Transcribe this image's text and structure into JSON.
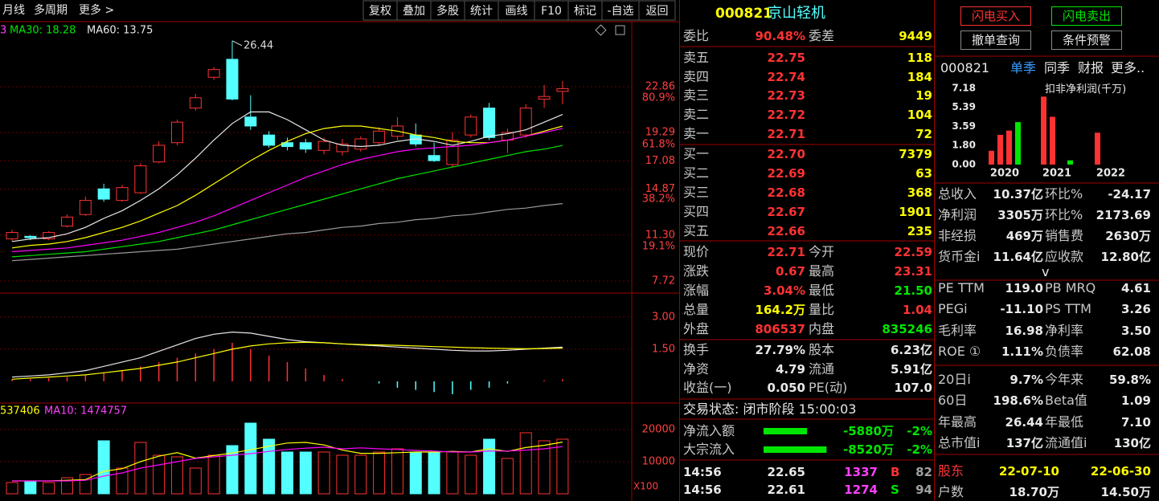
{
  "toolbar": {
    "left": [
      "月线",
      "多周期",
      "更多 >"
    ],
    "right": [
      "复权",
      "叠加",
      "多股",
      "统计",
      "画线",
      "F10",
      "标记",
      "-自选",
      "返回"
    ]
  },
  "kline": {
    "legend": [
      "3",
      "MA30: 18.28",
      "MA60: 13.75"
    ],
    "ylim": [
      6.78,
      27.87
    ],
    "yticks": [
      22.86,
      19.29,
      17.08,
      14.87,
      {
        "value": 11.3,
        "label": "11.30"
      },
      7.72
    ],
    "ratio_labels": [
      "80.9%",
      "61.8%",
      "38.2%",
      "19.1%"
    ],
    "ratio_prices": [
      21.98,
      18.35,
      14.1,
      10.41
    ],
    "open": [
      11.0,
      11.2,
      11.0,
      12.0,
      12.9,
      14.9,
      14.0,
      14.6,
      17.0,
      18.5,
      21.2,
      23.6,
      25.0,
      20.5,
      19.1,
      18.5,
      18.5,
      17.9,
      17.8,
      18.0,
      18.5,
      19.0,
      19.1,
      17.5,
      16.8,
      19.1,
      21.2,
      18.7,
      19.1,
      21.9,
      22.5
    ],
    "close": [
      11.5,
      11.1,
      11.5,
      12.7,
      14.0,
      14.1,
      15.0,
      16.7,
      18.3,
      20.1,
      22.0,
      24.2,
      21.9,
      19.8,
      18.3,
      18.2,
      18.0,
      18.6,
      18.4,
      18.8,
      19.4,
      19.8,
      18.4,
      17.1,
      18.7,
      20.5,
      18.9,
      19.3,
      21.2,
      22.1,
      22.71
    ],
    "high": [
      11.7,
      11.3,
      11.6,
      12.9,
      14.3,
      15.3,
      15.2,
      16.9,
      18.6,
      20.3,
      22.3,
      24.4,
      26.44,
      22.2,
      19.4,
      18.9,
      18.8,
      18.9,
      18.8,
      19.0,
      19.7,
      20.5,
      20.0,
      18.5,
      19.3,
      20.7,
      21.6,
      19.6,
      21.5,
      23.0,
      23.31
    ],
    "low": [
      10.8,
      10.9,
      10.9,
      11.9,
      12.8,
      13.9,
      13.9,
      14.5,
      16.9,
      18.3,
      21.0,
      23.4,
      21.8,
      19.5,
      18.1,
      17.9,
      17.7,
      17.6,
      17.5,
      17.8,
      18.3,
      18.7,
      18.2,
      17.0,
      16.6,
      18.9,
      18.7,
      17.7,
      18.9,
      21.2,
      21.5
    ],
    "ma": [
      {
        "color": "#e8e8e8",
        "values": [
          10.8,
          11.0,
          11.1,
          11.4,
          11.9,
          12.6,
          13.2,
          14.0,
          14.9,
          16.0,
          17.3,
          18.7,
          20.0,
          20.9,
          20.9,
          20.3,
          19.5,
          18.7,
          18.3,
          18.2,
          18.3,
          18.6,
          18.8,
          18.6,
          18.3,
          18.6,
          19.0,
          19.2,
          19.5,
          20.1,
          20.7
        ]
      },
      {
        "color": "#ffff00",
        "values": [
          10.3,
          10.5,
          10.6,
          10.8,
          11.1,
          11.5,
          11.9,
          12.4,
          13.0,
          13.6,
          14.4,
          15.3,
          16.2,
          17.1,
          17.9,
          18.6,
          19.2,
          19.6,
          19.8,
          19.8,
          19.6,
          19.4,
          19.1,
          18.9,
          18.6,
          18.5,
          18.5,
          18.7,
          19.0,
          19.4,
          19.8
        ]
      },
      {
        "color": "#ff00ff",
        "values": [
          10.0,
          10.1,
          10.2,
          10.3,
          10.5,
          10.7,
          10.9,
          11.2,
          11.5,
          11.9,
          12.3,
          12.8,
          13.4,
          14.0,
          14.6,
          15.2,
          15.8,
          16.3,
          16.8,
          17.2,
          17.5,
          17.8,
          18.0,
          18.1,
          18.2,
          18.3,
          18.5,
          18.7,
          19.0,
          19.3,
          19.6
        ]
      },
      {
        "color": "#00e600",
        "values": [
          9.6,
          9.7,
          9.8,
          9.9,
          10.0,
          10.2,
          10.4,
          10.6,
          10.8,
          11.1,
          11.4,
          11.7,
          12.1,
          12.5,
          12.9,
          13.3,
          13.7,
          14.1,
          14.5,
          14.9,
          15.3,
          15.7,
          16.0,
          16.3,
          16.6,
          16.9,
          17.2,
          17.5,
          17.8,
          18.0,
          18.28
        ]
      },
      {
        "color": "#9a9a9a",
        "values": [
          9.3,
          9.4,
          9.5,
          9.6,
          9.7,
          9.8,
          9.9,
          10.0,
          10.1,
          10.2,
          10.4,
          10.6,
          10.8,
          11.0,
          11.2,
          11.4,
          11.5,
          11.7,
          11.9,
          12.0,
          12.2,
          12.3,
          12.5,
          12.6,
          12.8,
          12.9,
          13.1,
          13.3,
          13.4,
          13.6,
          13.75
        ]
      }
    ]
  },
  "macd": {
    "ylim": [
      -0.94,
      4.01
    ],
    "yticks": [
      {
        "value": 3,
        "label": "3.00"
      },
      {
        "value": 1.5,
        "label": "1.50"
      }
    ],
    "bars": [
      0.1,
      0.1,
      0.15,
      0.2,
      0.3,
      0.4,
      0.5,
      0.7,
      0.9,
      1.1,
      1.3,
      1.5,
      1.8,
      1.5,
      1.2,
      0.9,
      0.6,
      0.3,
      0.1,
      0,
      -0.1,
      -0.3,
      -0.4,
      -0.5,
      -0.6,
      -0.4,
      -0.3,
      -0.1,
      0,
      0.05,
      0.1
    ],
    "dif": [
      0.2,
      0.25,
      0.3,
      0.4,
      0.5,
      0.7,
      0.9,
      1.1,
      1.4,
      1.7,
      2.0,
      2.2,
      2.3,
      2.25,
      2.1,
      1.95,
      1.85,
      1.8,
      1.75,
      1.7,
      1.65,
      1.6,
      1.55,
      1.5,
      1.45,
      1.42,
      1.42,
      1.45,
      1.5,
      1.55,
      1.6
    ],
    "dea": [
      0.1,
      0.15,
      0.2,
      0.25,
      0.3,
      0.4,
      0.5,
      0.6,
      0.75,
      0.9,
      1.1,
      1.3,
      1.5,
      1.65,
      1.75,
      1.8,
      1.82,
      1.8,
      1.75,
      1.72,
      1.7,
      1.68,
      1.65,
      1.62,
      1.6,
      1.57,
      1.55,
      1.53,
      1.52,
      1.53,
      1.55
    ]
  },
  "volume": {
    "legend": [
      "537406",
      "MA10: 1474757"
    ],
    "ylim": [
      0,
      27500
    ],
    "yticks": [
      20000,
      10000
    ],
    "unit": "X100",
    "values": [
      3500,
      4000,
      3500,
      5000,
      6000,
      16500,
      8000,
      16000,
      12000,
      11500,
      8000,
      12000,
      15000,
      22000,
      17000,
      13000,
      13000,
      13000,
      12000,
      12000,
      13000,
      14000,
      13000,
      13000,
      13000,
      12000,
      17000,
      11000,
      19000,
      16500,
      17000
    ],
    "ma5": [
      4000,
      4000,
      4000,
      4200,
      4400,
      7000,
      7800,
      10000,
      11700,
      12800,
      11100,
      11900,
      12700,
      13700,
      14800,
      15800,
      16000,
      15200,
      13600,
      12600,
      12600,
      12800,
      13000,
      13000,
      13200,
      13000,
      14000,
      13200,
      14400,
      15100,
      16100
    ],
    "ma10": [
      4000,
      4000,
      4000,
      4000,
      4200,
      5500,
      6500,
      8000,
      9000,
      10000,
      11000,
      11500,
      12000,
      12500,
      13200,
      13800,
      14200,
      14500,
      14000,
      14300,
      14000,
      13800,
      13500,
      13300,
      13000,
      13000,
      13300,
      13300,
      13600,
      14000,
      14700
    ]
  },
  "quote": {
    "code": "000821",
    "name": "京山轻机",
    "ratio_row": [
      "委比",
      "90.48%",
      "委差",
      "9449"
    ],
    "asks": [
      [
        "卖五",
        "22.75",
        "118"
      ],
      [
        "卖四",
        "22.74",
        "184"
      ],
      [
        "卖三",
        "22.73",
        "19"
      ],
      [
        "卖二",
        "22.72",
        "104"
      ],
      [
        "卖一",
        "22.71",
        "72"
      ]
    ],
    "bids": [
      [
        "买一",
        "22.70",
        "7379"
      ],
      [
        "买二",
        "22.69",
        "63"
      ],
      [
        "买三",
        "22.68",
        "368"
      ],
      [
        "买四",
        "22.67",
        "1901"
      ],
      [
        "买五",
        "22.66",
        "235"
      ]
    ],
    "stats_a": [
      [
        "现价",
        "22.71",
        "今开",
        "22.59"
      ],
      [
        "涨跌",
        "0.67",
        "最高",
        "23.31"
      ],
      [
        "涨幅",
        "3.04%",
        "最低",
        "21.50"
      ],
      [
        "总量",
        "164.2万",
        "量比",
        "1.04"
      ],
      [
        "外盘",
        "806537",
        "内盘",
        "835246"
      ]
    ],
    "stats_b": [
      [
        "换手",
        "27.79%",
        "股本",
        "6.23亿"
      ],
      [
        "净资",
        "4.79",
        "流通",
        "5.91亿"
      ],
      [
        "收益(一)",
        "0.050",
        "PE(动)",
        "107.0"
      ]
    ],
    "status": "交易状态: 闭市阶段 15:00:03",
    "flows": [
      [
        "净流入额",
        "-5880万",
        "-2%"
      ],
      [
        "大宗流入",
        "-8520万",
        "-2%"
      ]
    ],
    "ticks": [
      [
        "14:56",
        "22.65",
        "1337",
        "B",
        "82"
      ],
      [
        "14:56",
        "22.61",
        "1274",
        "S",
        "94"
      ]
    ]
  },
  "fin": {
    "buttons": [
      "闪电买入",
      "闪电卖出",
      "撤单查询",
      "条件预警"
    ],
    "tabs": [
      "000821",
      "单季",
      "同季",
      "财报",
      "更多.."
    ],
    "chart": {
      "title": "扣非净利润(千万)",
      "ylim": [
        0,
        7.18
      ],
      "yticks": [
        7.18,
        5.39,
        3.59,
        {
          "value": 1.8,
          "label": "1.80"
        },
        {
          "value": 0,
          "label": "0.00"
        }
      ],
      "categories": [
        "2020",
        "2021",
        "2022"
      ],
      "values": [
        1.3,
        2.8,
        3.2,
        4.0,
        6.4,
        4.5,
        null,
        0.4,
        3.0,
        null,
        null,
        null
      ],
      "colors": [
        "#ff3232",
        "#ff3232",
        "#ff3232",
        "#00e600",
        "#ff3232",
        "#ff3232",
        null,
        "#00e600",
        "#ff3232",
        null,
        null,
        null
      ]
    },
    "rows_a": [
      [
        "总收入",
        "10.37亿",
        "环比%",
        "-24.17"
      ],
      [
        "净利润",
        "3305万",
        "环比%",
        "2173.69"
      ],
      [
        "非经损",
        "469万",
        "销售费",
        "2630万"
      ],
      [
        "货币金i",
        "11.64亿",
        "应收款",
        "12.80亿"
      ]
    ],
    "expand": "v",
    "rows_b": [
      [
        "PE TTM",
        "119.0",
        "PB MRQ",
        "4.61"
      ],
      [
        "PEGi",
        "-11.10",
        "PS TTM",
        "3.26"
      ],
      [
        "毛利率",
        "16.98",
        "净利率",
        "3.50"
      ],
      [
        "ROE ①",
        "1.11%",
        "负债率",
        "62.08"
      ]
    ],
    "rows_c": [
      [
        "20日i",
        "9.7%",
        "今年来",
        "59.8%"
      ],
      [
        "60日",
        "198.6%",
        "Beta值",
        "1.09"
      ],
      [
        "年最高",
        "26.44",
        "年最低",
        "7.10"
      ],
      [
        "总市值i",
        "137亿",
        "流通值i",
        "130亿"
      ]
    ],
    "rows_d": [
      [
        "股东",
        "22-07-10",
        "22-06-30"
      ],
      [
        "户数",
        "18.70万",
        "14.50万"
      ]
    ]
  }
}
